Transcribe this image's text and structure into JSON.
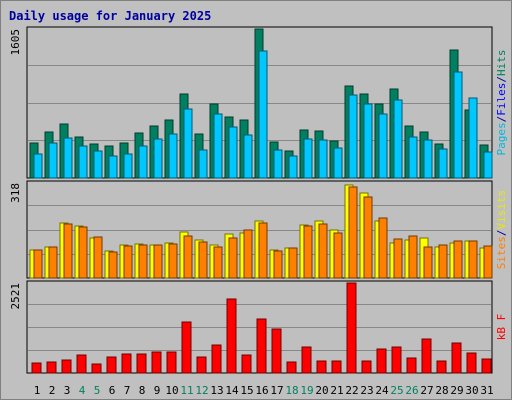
{
  "chart_data": {
    "type": "bar",
    "title": "Daily usage for January 2025",
    "x": [
      "1",
      "2",
      "3",
      "4",
      "5",
      "6",
      "7",
      "8",
      "9",
      "10",
      "11",
      "12",
      "13",
      "14",
      "15",
      "16",
      "17",
      "18",
      "19",
      "20",
      "21",
      "22",
      "23",
      "24",
      "25",
      "26",
      "27",
      "28",
      "29",
      "30",
      "31"
    ],
    "weekend_days": [
      "4",
      "5",
      "11",
      "12",
      "18",
      "19",
      "25",
      "26"
    ],
    "panels": [
      {
        "id": "hits-files-pages",
        "ymax": 1605,
        "ymax_label": "1605",
        "legend": [
          {
            "text": "Pages",
            "color": "#00b8e0"
          },
          {
            "text": "/",
            "color": "#0000a0"
          },
          {
            "text": "Files",
            "color": "#0000ff"
          },
          {
            "text": "/",
            "color": "#0000a0"
          },
          {
            "text": "Hits",
            "color": "#00805c"
          }
        ],
        "series": [
          {
            "name": "Hits",
            "color": "#008060",
            "values": [
              380,
              500,
              580,
              440,
              370,
              350,
              380,
              480,
              560,
              620,
              900,
              470,
              800,
              660,
              620,
              1605,
              390,
              290,
              520,
              510,
              400,
              990,
              910,
              800,
              960,
              560,
              500,
              370,
              1380,
              730,
              360
            ]
          },
          {
            "name": "Files",
            "color": "#00c8ff",
            "values": [
              260,
              380,
              430,
              340,
              290,
              240,
              260,
              340,
              420,
              470,
              740,
              300,
              690,
              550,
              460,
              1370,
              300,
              240,
              420,
              410,
              320,
              890,
              800,
              690,
              840,
              440,
              410,
              310,
              1140,
              860,
              280
            ]
          }
        ]
      },
      {
        "id": "visits-sites",
        "ymax": 318,
        "ymax_label": "318",
        "legend": [
          {
            "text": "Sites",
            "color": "#ff8000"
          },
          {
            "text": "/",
            "color": "#0000a0"
          },
          {
            "text": "Visits",
            "color": "#e8e800"
          }
        ],
        "series": [
          {
            "name": "Visits",
            "color": "#ffff00",
            "values": [
              95,
              105,
              185,
              175,
              135,
              90,
              110,
              115,
              110,
              118,
              155,
              128,
              110,
              148,
              150,
              190,
              95,
              100,
              178,
              190,
              160,
              310,
              285,
              190,
              118,
              128,
              135,
              105,
              118,
              123,
              100
            ]
          },
          {
            "name": "Sites",
            "color": "#ff8000",
            "values": [
              95,
              105,
              180,
              170,
              138,
              88,
              108,
              110,
              110,
              115,
              140,
              120,
              105,
              135,
              160,
              185,
              92,
              100,
              175,
              180,
              150,
              305,
              270,
              200,
              130,
              140,
              103,
              112,
              125,
              123,
              108
            ]
          }
        ]
      },
      {
        "id": "kbytes",
        "ymax": 2521,
        "ymax_label": "2521",
        "legend": [
          {
            "text": "kB F",
            "color": "#ff0000"
          }
        ],
        "series": [
          {
            "name": "kB F",
            "color": "#ff0000",
            "values": [
              290,
              300,
              360,
              510,
              250,
              450,
              520,
              520,
              580,
              580,
              1420,
              460,
              780,
              2080,
              510,
              1500,
              1230,
              320,
              740,
              340,
              340,
              2521,
              350,
              670,
              720,
              430,
              960,
              330,
              850,
              560,
              390
            ]
          }
        ]
      }
    ]
  }
}
